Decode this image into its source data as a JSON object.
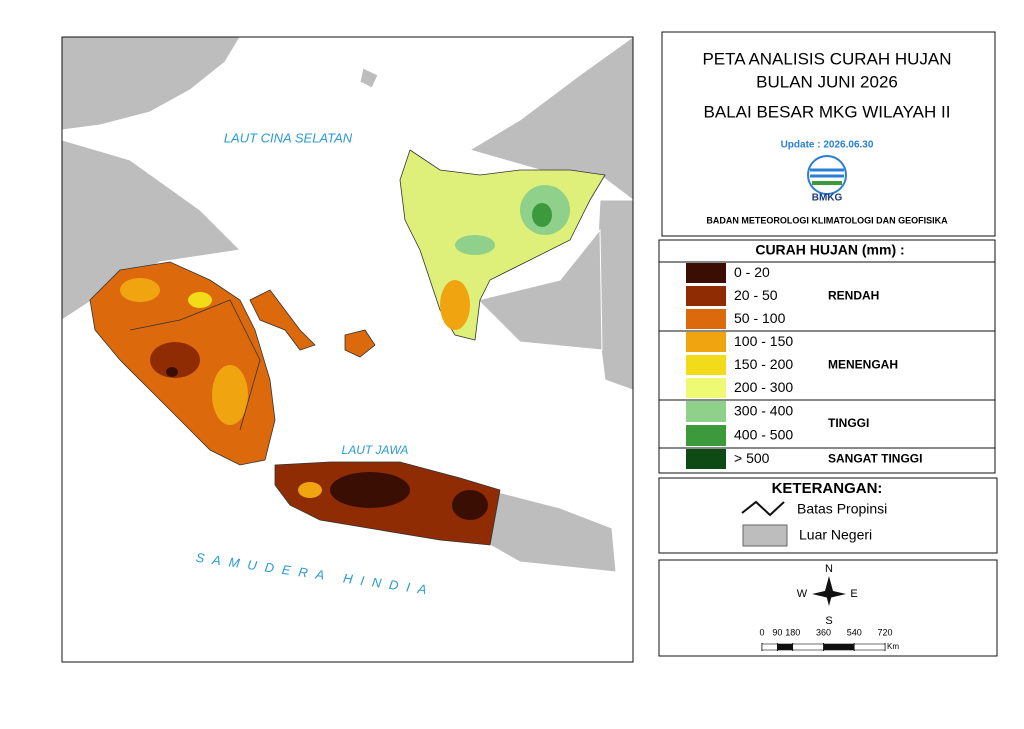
{
  "header": {
    "title_line1": "PETA ANALISIS CURAH HUJAN",
    "title_line2": "BULAN JUNI 2026",
    "subtitle": "BALAI BESAR MKG WILAYAH II",
    "update": "Update : 2026.06.30",
    "logo_text": "BMKG",
    "agency": "BADAN METEOROLOGI KLIMATOLOGI DAN GEOFISIKA"
  },
  "map_labels": [
    "LAUT CINA SELATAN",
    "LAUT JAWA",
    "SAMUDERA HINDIA"
  ],
  "legend": {
    "title": "CURAH HUJAN (mm) :",
    "groups": [
      {
        "name": "RENDAH",
        "classes": [
          {
            "label": "0 - 20",
            "color": "#3b0e04"
          },
          {
            "label": "20 - 50",
            "color": "#8f2c04"
          },
          {
            "label": "50 - 100",
            "color": "#dc6a0c"
          }
        ]
      },
      {
        "name": "MENENGAH",
        "classes": [
          {
            "label": "100 - 150",
            "color": "#f0a510"
          },
          {
            "label": "150 - 200",
            "color": "#f2dc1a"
          },
          {
            "label": "200 - 300",
            "color": "#eefa74"
          }
        ]
      },
      {
        "name": "TINGGI",
        "classes": [
          {
            "label": "300 - 400",
            "color": "#8fd18a"
          },
          {
            "label": "400 - 500",
            "color": "#3c9a3c"
          }
        ]
      },
      {
        "name": "SANGAT TINGGI",
        "classes": [
          {
            "label": "> 500",
            "color": "#0d4a14"
          }
        ]
      }
    ]
  },
  "keterangan": {
    "title": "KETERANGAN:",
    "items": [
      "Batas Propinsi",
      "Luar Negeri"
    ]
  },
  "compass": {
    "north": "N",
    "south": "S",
    "east": "E",
    "west": "W"
  },
  "scale": {
    "ticks": [
      0,
      90,
      180,
      360,
      540,
      720
    ],
    "unit": "Km"
  }
}
